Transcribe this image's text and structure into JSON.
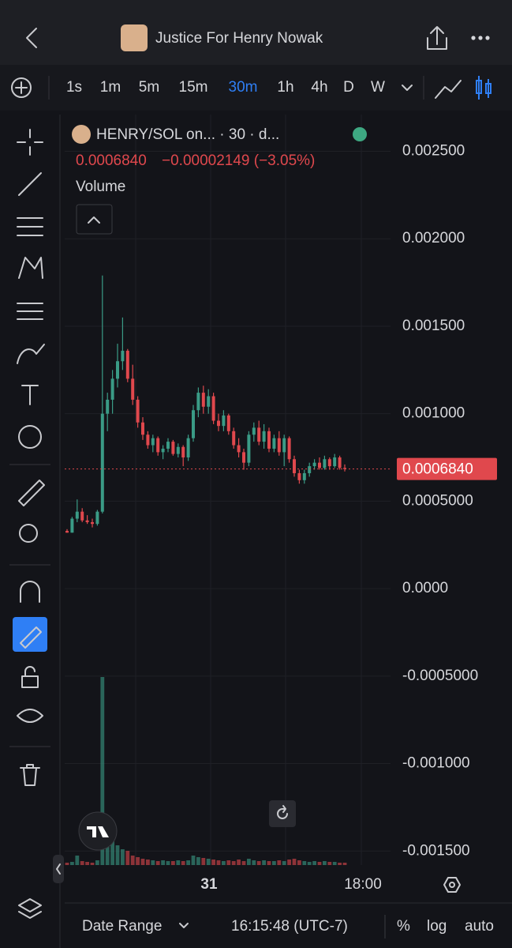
{
  "header": {
    "title": "Justice For Henry Nowak"
  },
  "timeframes": [
    "1s",
    "1m",
    "5m",
    "15m",
    "30m",
    "1h",
    "4h",
    "D",
    "W"
  ],
  "legend": {
    "symbol": "HENRY/SOL on... · 30 · d...",
    "change": "−0.00002149 (−3.05%)",
    "volume": "Volume"
  },
  "chart_data": {
    "type": "candlestick",
    "open": [
      0.00033,
      0.00032,
      0.0004,
      0.00044,
      0.00039,
      0.00038,
      0.00037,
      0.00044,
      0.001,
      0.00108,
      0.0012,
      0.0013,
      0.00136,
      0.0012,
      0.00108,
      0.00095,
      0.00088,
      0.00082,
      0.00086,
      0.00078,
      0.0008,
      0.00084,
      0.00077,
      0.00081,
      0.00075,
      0.00086,
      0.00102,
      0.00112,
      0.00104,
      0.0011,
      0.00096,
      0.00093,
      0.00099,
      0.0009,
      0.00082,
      0.00078,
      0.00072,
      0.00088,
      0.00092,
      0.00084,
      0.0009,
      0.0008,
      0.00086,
      0.00078,
      0.00086,
      0.00074,
      0.00066,
      0.00062,
      0.00066,
      0.0007,
      0.00072,
      0.00069,
      0.00074,
      0.0007,
      0.00075,
      0.00069
    ],
    "high": [
      0.00034,
      0.00041,
      0.00051,
      0.00046,
      0.00042,
      0.0004,
      0.00045,
      0.00179,
      0.00112,
      0.00125,
      0.0014,
      0.00155,
      0.00137,
      0.00128,
      0.0011,
      0.00098,
      0.0009,
      0.00088,
      0.00087,
      0.00082,
      0.00086,
      0.00085,
      0.00083,
      0.00082,
      0.00088,
      0.00105,
      0.00115,
      0.00116,
      0.00114,
      0.00112,
      0.001,
      0.00102,
      0.001,
      0.00092,
      0.00086,
      0.0008,
      0.0009,
      0.00095,
      0.00096,
      0.00094,
      0.00092,
      0.00088,
      0.0009,
      0.00088,
      0.00087,
      0.00076,
      0.00068,
      0.00068,
      0.00072,
      0.00074,
      0.00075,
      0.00076,
      0.00075,
      0.00077,
      0.00076,
      0.00071
    ],
    "low": [
      0.00032,
      0.00032,
      0.00038,
      0.00038,
      0.00037,
      0.00035,
      0.00036,
      0.00043,
      0.0009,
      0.001,
      0.00115,
      0.00125,
      0.00118,
      0.00105,
      0.00092,
      0.00085,
      0.0008,
      0.00078,
      0.00076,
      0.00074,
      0.00078,
      0.00076,
      0.00075,
      0.0007,
      0.00073,
      0.00084,
      0.00098,
      0.001,
      0.001,
      0.00094,
      0.0009,
      0.0009,
      0.00088,
      0.0008,
      0.00075,
      0.00068,
      0.0007,
      0.00084,
      0.00082,
      0.0008,
      0.00078,
      0.00078,
      0.00076,
      0.0007,
      0.00072,
      0.00064,
      0.0006,
      0.0006,
      0.00064,
      0.00068,
      0.00068,
      0.00068,
      0.00068,
      0.00069,
      0.00068,
      0.00067
    ],
    "close": [
      0.00032,
      0.0004,
      0.00044,
      0.00039,
      0.00038,
      0.00037,
      0.00044,
      0.001,
      0.00108,
      0.0012,
      0.0013,
      0.00136,
      0.0012,
      0.00108,
      0.00095,
      0.00088,
      0.00082,
      0.00086,
      0.00078,
      0.0008,
      0.00084,
      0.00077,
      0.00081,
      0.00075,
      0.00086,
      0.00102,
      0.00112,
      0.00104,
      0.0011,
      0.00096,
      0.00093,
      0.00099,
      0.0009,
      0.00082,
      0.00078,
      0.00072,
      0.00088,
      0.00092,
      0.00084,
      0.0009,
      0.0008,
      0.00086,
      0.00078,
      0.00086,
      0.00074,
      0.00066,
      0.00062,
      0.00066,
      0.0007,
      0.00072,
      0.00069,
      0.00074,
      0.0007,
      0.00075,
      0.00069,
      0.000684
    ],
    "volume": [
      3,
      4,
      12,
      5,
      4,
      3,
      6,
      238,
      40,
      30,
      25,
      20,
      18,
      12,
      10,
      8,
      7,
      6,
      5,
      6,
      5,
      5,
      6,
      5,
      6,
      12,
      10,
      9,
      8,
      7,
      6,
      5,
      6,
      5,
      7,
      5,
      8,
      6,
      5,
      6,
      5,
      5,
      6,
      5,
      7,
      8,
      6,
      5,
      4,
      5,
      4,
      5,
      4,
      4,
      3,
      3
    ],
    "up_color": "#3a9b86",
    "down_color": "#e0484d",
    "ylim": [
      -0.00158,
      0.00271
    ],
    "yticks": [
      {
        "value": 0.0025,
        "label": "0.002500"
      },
      {
        "value": 0.002,
        "label": "0.002000"
      },
      {
        "value": 0.0015,
        "label": "0.001500"
      },
      {
        "value": 0.001,
        "label": "0.001000"
      },
      {
        "value": 0.0005,
        "label": "0.0005000"
      },
      {
        "value": 0,
        "label": "0.0000"
      },
      {
        "value": -0.0005,
        "label": "-0.0005000"
      },
      {
        "value": -0.001,
        "label": "-0.001000"
      },
      {
        "value": -0.0015,
        "label": "-0.001500"
      }
    ],
    "x_labels": [
      "31",
      "18:00"
    ],
    "last_price": {
      "value": 0.000684,
      "label": "0.0006840"
    }
  },
  "footer": {
    "date_range": "Date Range",
    "time": "16:15:48 (UTC-7)",
    "options": [
      "%",
      "log",
      "auto"
    ]
  }
}
